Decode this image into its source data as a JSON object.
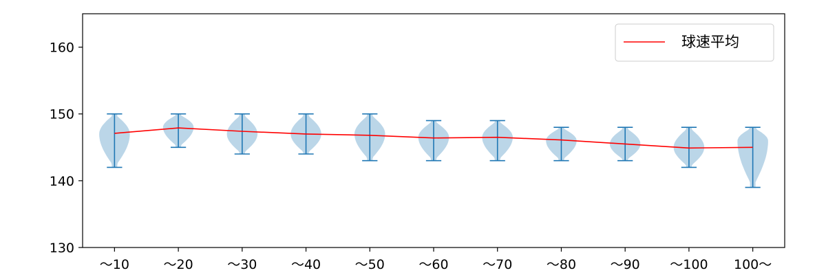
{
  "chart_data": {
    "type": "violin",
    "title": "",
    "xlabel": "",
    "ylabel": "",
    "categories": [
      "～10",
      "～20",
      "～30",
      "～40",
      "～50",
      "～60",
      "～70",
      "～80",
      "～90",
      "～100",
      "100～"
    ],
    "ylim": [
      130,
      165
    ],
    "yticks": [
      130,
      140,
      150,
      160
    ],
    "grid": false,
    "legend_position": "top-right",
    "violins": [
      {
        "min": 142,
        "max": 150,
        "mode": 147,
        "halfwidth": 0.24
      },
      {
        "min": 145,
        "max": 150,
        "mode": 148,
        "halfwidth": 0.24
      },
      {
        "min": 144,
        "max": 150,
        "mode": 147,
        "halfwidth": 0.24
      },
      {
        "min": 144,
        "max": 150,
        "mode": 147,
        "halfwidth": 0.24
      },
      {
        "min": 143,
        "max": 150,
        "mode": 147,
        "halfwidth": 0.24
      },
      {
        "min": 143,
        "max": 149,
        "mode": 146.5,
        "halfwidth": 0.24
      },
      {
        "min": 143,
        "max": 149,
        "mode": 146.5,
        "halfwidth": 0.24
      },
      {
        "min": 143,
        "max": 148,
        "mode": 146,
        "halfwidth": 0.24
      },
      {
        "min": 143,
        "max": 148,
        "mode": 145.5,
        "halfwidth": 0.24
      },
      {
        "min": 142,
        "max": 148,
        "mode": 145,
        "halfwidth": 0.24
      },
      {
        "min": 139,
        "max": 148,
        "mode": 146,
        "halfwidth": 0.24
      }
    ],
    "series": [
      {
        "name": "球速平均",
        "type": "line",
        "color": "#ff0000",
        "values": [
          147.1,
          147.9,
          147.4,
          147.0,
          146.8,
          146.4,
          146.5,
          146.1,
          145.5,
          144.9,
          145.0
        ]
      }
    ],
    "colors": {
      "violin_fill": "#1f77b4",
      "violin_fill_opacity": 0.3,
      "whisker": "#1f77b4",
      "mean_line": "#ff0000"
    }
  }
}
